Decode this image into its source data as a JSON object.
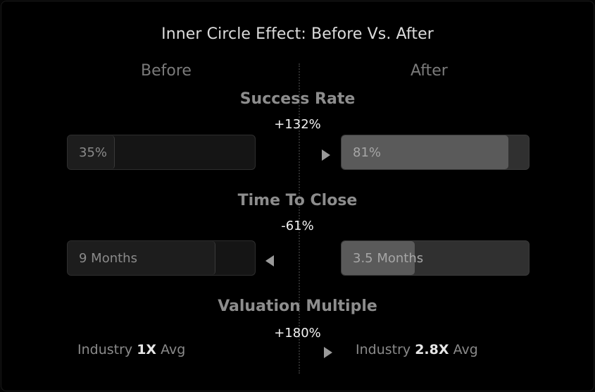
{
  "title": "Inner Circle Effect: Before Vs. After",
  "columns": {
    "before": "Before",
    "after": "After"
  },
  "sections": [
    {
      "title": "Success Rate",
      "delta": "+132%",
      "before": {
        "label": "35%",
        "fill_fraction": 0.25
      },
      "after": {
        "label": "81%",
        "fill_fraction": 0.89
      },
      "arrow": "right"
    },
    {
      "title": "Time To Close",
      "delta": "-61%",
      "before": {
        "label": "9 Months",
        "fill_fraction": 0.79
      },
      "after": {
        "label": "3.5 Months",
        "fill_fraction": 0.39
      },
      "arrow": "left"
    },
    {
      "title": "Valuation Multiple",
      "delta": "+180%",
      "before": {
        "prefix": "Industry",
        "value": "1X",
        "suffix": "Avg"
      },
      "after": {
        "prefix": "Industry",
        "value": "2.8X",
        "suffix": "Avg"
      },
      "arrow": "right"
    }
  ],
  "colors": {
    "background": "#000000",
    "after_fill": "#5a5a5a",
    "accent_text": "#f2f2f2"
  }
}
